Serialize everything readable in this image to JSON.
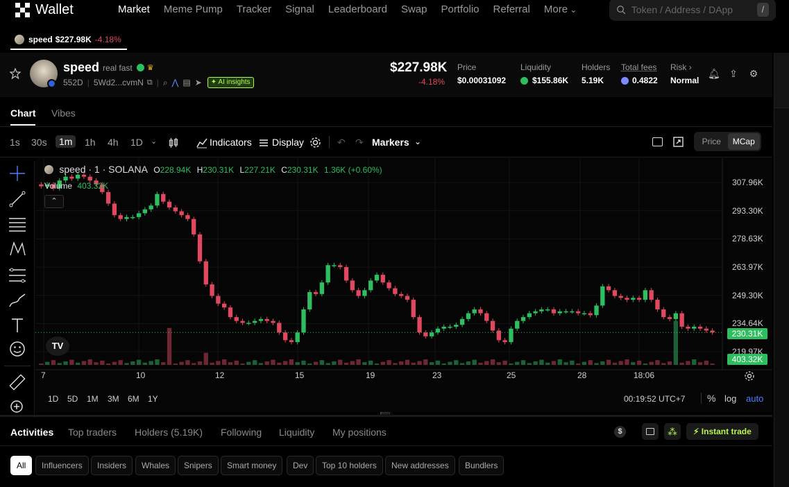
{
  "nav": {
    "logo_mark": "OKX",
    "logo_text": "Wallet",
    "links": [
      "Market",
      "Meme Pump",
      "Tracker",
      "Signal",
      "Leaderboard",
      "Swap",
      "Portfolio",
      "Referral",
      "More"
    ],
    "active": "Market",
    "search_placeholder": "Token / Address / DApp",
    "search_shortcut": "/"
  },
  "token_tab": {
    "name": "speed",
    "mcap": "$227.98K",
    "change": "-4.18%"
  },
  "token": {
    "name": "speed",
    "tagline": "real fast",
    "age": "552D",
    "address": "5Wd2...cvmN",
    "ai_label": "AI insights",
    "mcap": "$227.98K",
    "change": "-4.18%",
    "stats": [
      {
        "label": "Price",
        "value": "$0.00031092"
      },
      {
        "label": "Liquidity",
        "value": "$155.86K"
      },
      {
        "label": "Holders",
        "value": "5.19K"
      },
      {
        "label": "Total fees",
        "value": "0.4822"
      },
      {
        "label": "Risk",
        "value": "Normal"
      }
    ]
  },
  "chart_tabs": [
    "Chart",
    "Vibes"
  ],
  "toolbar": {
    "intervals": [
      "1s",
      "30s",
      "1m",
      "1h",
      "4h",
      "1D"
    ],
    "active_interval": "1m",
    "indicators": "Indicators",
    "display": "Display",
    "markers": "Markers",
    "toggle": [
      "Price",
      "MCap"
    ],
    "toggle_active": "MCap"
  },
  "legend": {
    "symbol": "speed · 1 · SOLANA",
    "o_label": "O",
    "o": "228.94K",
    "h_label": "H",
    "h": "230.31K",
    "l_label": "L",
    "l": "227.21K",
    "c_label": "C",
    "c": "230.31K",
    "chg": "1.36K (+0.60%)",
    "volume_label": "Volume",
    "volume": "403.32K"
  },
  "chart_data": {
    "type": "candlestick",
    "x_ticks": [
      "7",
      "10",
      "12",
      "15",
      "19",
      "23",
      "25",
      "28",
      "18:06"
    ],
    "y_ticks": [
      "307.96K",
      "293.30K",
      "278.63K",
      "263.97K",
      "249.30K",
      "234.64K",
      "219.97K"
    ],
    "last_price_label": "230.31K",
    "volume_label": "403.32K",
    "close_series": [
      306,
      307,
      305,
      309,
      311,
      310,
      312,
      311,
      309,
      307,
      303,
      297,
      291,
      289,
      290,
      290,
      292,
      294,
      296,
      302,
      298,
      295,
      293,
      291,
      289,
      281,
      267,
      255,
      249,
      245,
      243,
      238,
      236,
      235,
      235,
      236,
      237,
      236,
      235,
      230,
      226,
      225,
      230,
      242,
      251,
      250,
      256,
      265,
      265,
      264,
      257,
      252,
      249,
      252,
      257,
      260,
      256,
      253,
      250,
      249,
      247,
      238,
      230,
      228,
      230,
      232,
      233,
      233,
      234,
      237,
      240,
      242,
      240,
      236,
      231,
      226,
      225,
      232,
      236,
      238,
      240,
      241,
      242,
      242,
      240,
      241,
      241,
      241,
      240,
      240,
      239,
      244,
      254,
      252,
      249,
      248,
      247,
      248,
      247,
      252,
      247,
      242,
      238,
      237,
      240,
      233,
      232,
      233,
      232,
      231,
      230
    ]
  },
  "range_buttons": [
    "1D",
    "5D",
    "1M",
    "3M",
    "6M",
    "1Y"
  ],
  "clock": "00:19:52 UTC+7",
  "scale": {
    "percent": "%",
    "log": "log",
    "auto": "auto"
  },
  "activity": {
    "tabs": [
      "Activities",
      "Top traders",
      "Holders (5.19K)",
      "Following",
      "Liquidity",
      "My positions"
    ],
    "active_tab": "Activities",
    "instant_trade": "Instant trade",
    "dollar": "$",
    "filters": [
      "All",
      "Influencers",
      "Insiders",
      "Whales",
      "Snipers",
      "Smart money",
      "Dev",
      "Top 10 holders",
      "New addresses",
      "Bundlers"
    ],
    "active_filter": "All"
  },
  "colors": {
    "up": "#2ebd5f",
    "down": "#e0485f",
    "accent": "#b8f34a"
  }
}
